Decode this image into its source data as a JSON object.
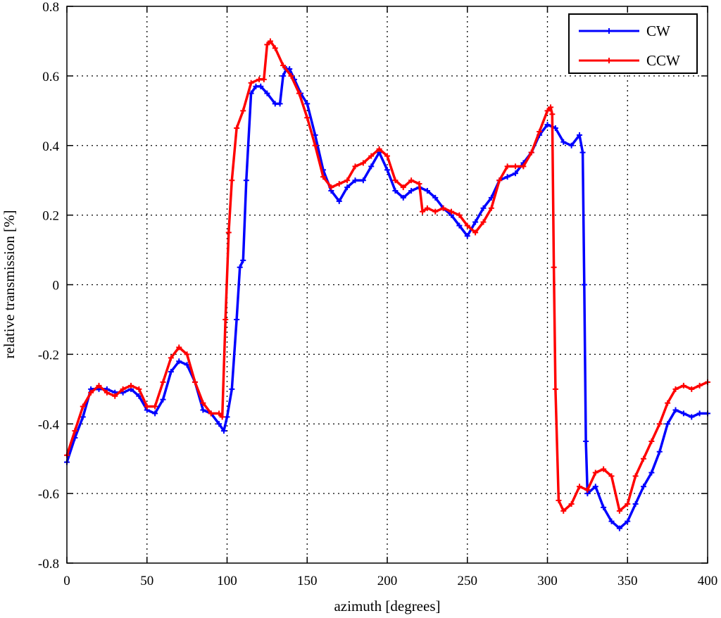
{
  "chart_data": {
    "type": "line",
    "title": "",
    "xlabel": "azimuth [degrees]",
    "ylabel": "relative transmission [%]",
    "xlim": [
      0,
      400
    ],
    "ylim": [
      -0.8,
      0.8
    ],
    "xticks": [
      0,
      50,
      100,
      150,
      200,
      250,
      300,
      350,
      400
    ],
    "yticks": [
      -0.8,
      -0.6,
      -0.4,
      -0.2,
      0,
      0.2,
      0.4,
      0.6,
      0.8
    ],
    "xtick_labels": [
      "0",
      "50",
      "100",
      "150",
      "200",
      "250",
      "300",
      "350",
      "400"
    ],
    "ytick_labels": [
      "-0.8",
      "-0.6",
      "-0.4",
      "-0.2",
      "0",
      "0.2",
      "0.4",
      "0.6",
      "0.8"
    ],
    "grid": true,
    "legend_position": "top-right",
    "series": [
      {
        "name": "CW",
        "color": "#0000ff",
        "x": [
          0,
          5,
          10,
          15,
          20,
          25,
          30,
          35,
          40,
          45,
          50,
          55,
          60,
          65,
          70,
          75,
          80,
          85,
          90,
          95,
          98,
          100,
          103,
          106,
          108,
          110,
          112,
          115,
          118,
          121,
          125,
          130,
          133,
          135,
          137,
          139,
          142,
          146,
          150,
          155,
          160,
          165,
          170,
          175,
          180,
          185,
          190,
          195,
          200,
          205,
          210,
          215,
          220,
          225,
          230,
          235,
          240,
          245,
          250,
          255,
          260,
          265,
          270,
          275,
          280,
          285,
          290,
          295,
          300,
          305,
          310,
          315,
          320,
          322,
          323,
          324,
          325,
          330,
          335,
          340,
          345,
          350,
          355,
          360,
          365,
          370,
          375,
          380,
          385,
          390,
          395,
          400
        ],
        "y": [
          -0.51,
          -0.44,
          -0.38,
          -0.3,
          -0.3,
          -0.3,
          -0.31,
          -0.31,
          -0.3,
          -0.32,
          -0.36,
          -0.37,
          -0.33,
          -0.25,
          -0.22,
          -0.23,
          -0.28,
          -0.36,
          -0.37,
          -0.4,
          -0.42,
          -0.38,
          -0.3,
          -0.1,
          0.05,
          0.07,
          0.3,
          0.55,
          0.57,
          0.57,
          0.55,
          0.52,
          0.52,
          0.6,
          0.62,
          0.62,
          0.59,
          0.55,
          0.52,
          0.43,
          0.33,
          0.27,
          0.24,
          0.28,
          0.3,
          0.3,
          0.34,
          0.38,
          0.33,
          0.27,
          0.25,
          0.27,
          0.28,
          0.27,
          0.25,
          0.22,
          0.2,
          0.17,
          0.14,
          0.18,
          0.22,
          0.25,
          0.3,
          0.31,
          0.32,
          0.35,
          0.38,
          0.43,
          0.46,
          0.45,
          0.41,
          0.4,
          0.43,
          0.38,
          0.0,
          -0.45,
          -0.6,
          -0.58,
          -0.64,
          -0.68,
          -0.7,
          -0.68,
          -0.63,
          -0.58,
          -0.54,
          -0.48,
          -0.4,
          -0.36,
          -0.37,
          -0.38,
          -0.37,
          -0.37
        ]
      },
      {
        "name": "CCW",
        "color": "#ff0000",
        "x": [
          0,
          5,
          10,
          15,
          20,
          25,
          30,
          35,
          40,
          45,
          50,
          55,
          60,
          65,
          70,
          75,
          80,
          85,
          90,
          95,
          97,
          99,
          101,
          103,
          106,
          110,
          115,
          120,
          123,
          125,
          127,
          130,
          135,
          140,
          145,
          150,
          155,
          160,
          165,
          170,
          175,
          180,
          185,
          190,
          195,
          200,
          205,
          210,
          215,
          220,
          222,
          225,
          230,
          235,
          240,
          245,
          250,
          255,
          260,
          265,
          270,
          275,
          280,
          285,
          290,
          295,
          300,
          302,
          303,
          304,
          305,
          307,
          310,
          315,
          320,
          325,
          330,
          335,
          340,
          345,
          350,
          355,
          360,
          365,
          370,
          375,
          380,
          385,
          390,
          395,
          400
        ],
        "y": [
          -0.49,
          -0.42,
          -0.35,
          -0.31,
          -0.29,
          -0.31,
          -0.32,
          -0.3,
          -0.29,
          -0.3,
          -0.35,
          -0.35,
          -0.28,
          -0.21,
          -0.18,
          -0.2,
          -0.28,
          -0.34,
          -0.37,
          -0.37,
          -0.38,
          -0.1,
          0.15,
          0.3,
          0.45,
          0.5,
          0.58,
          0.59,
          0.59,
          0.69,
          0.7,
          0.68,
          0.63,
          0.6,
          0.55,
          0.48,
          0.4,
          0.31,
          0.28,
          0.29,
          0.3,
          0.34,
          0.35,
          0.37,
          0.39,
          0.37,
          0.3,
          0.28,
          0.3,
          0.29,
          0.21,
          0.22,
          0.21,
          0.22,
          0.21,
          0.2,
          0.17,
          0.15,
          0.18,
          0.22,
          0.3,
          0.34,
          0.34,
          0.34,
          0.38,
          0.44,
          0.5,
          0.51,
          0.49,
          0.05,
          -0.3,
          -0.62,
          -0.65,
          -0.63,
          -0.58,
          -0.59,
          -0.54,
          -0.53,
          -0.55,
          -0.65,
          -0.63,
          -0.55,
          -0.5,
          -0.45,
          -0.4,
          -0.34,
          -0.3,
          -0.29,
          -0.3,
          -0.29,
          -0.28
        ]
      }
    ]
  }
}
